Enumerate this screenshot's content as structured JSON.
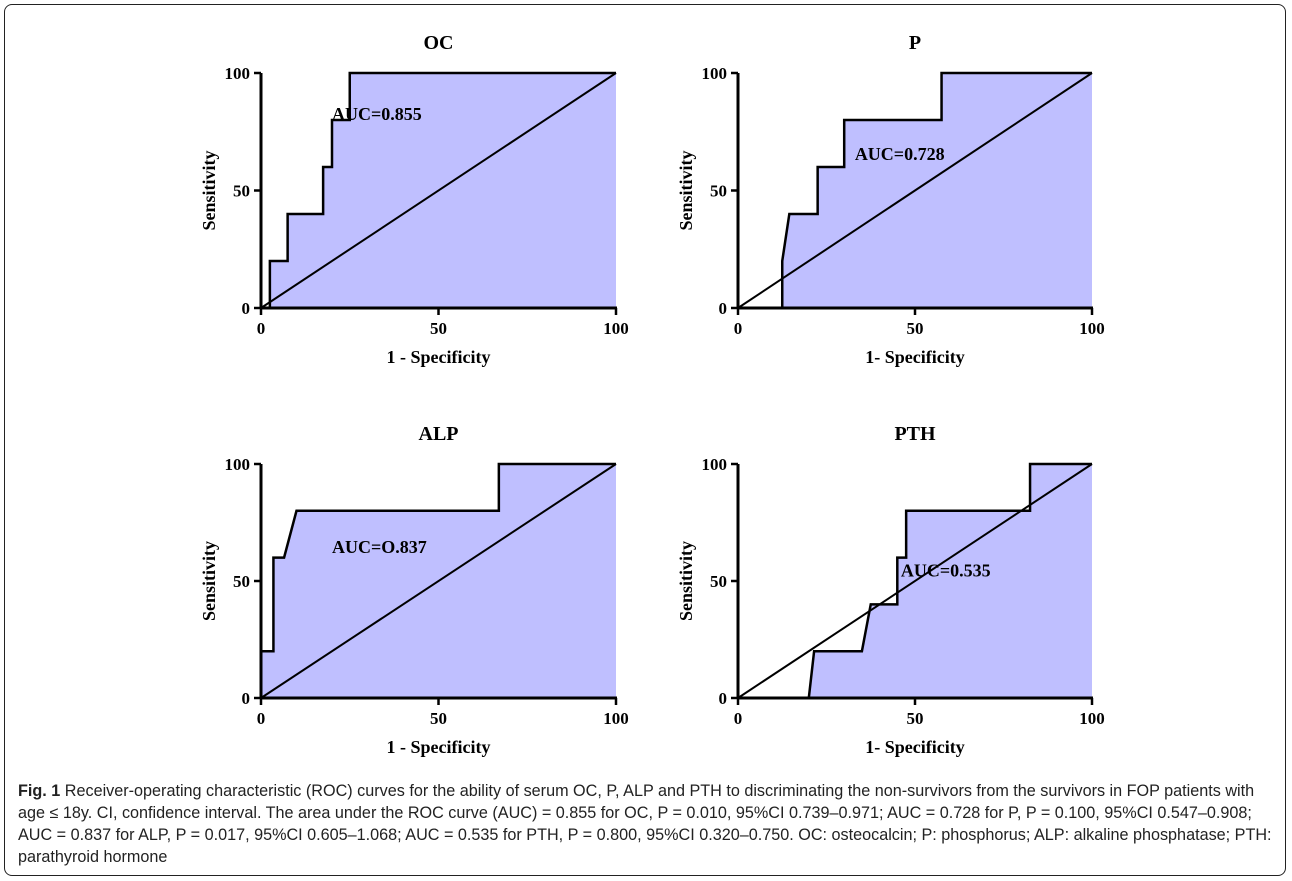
{
  "chart_data": [
    {
      "type": "line",
      "title": "OC",
      "xlabel": "1 - Specificity",
      "ylabel": "Sensitivity",
      "xlim": [
        0,
        100
      ],
      "ylim": [
        0,
        100
      ],
      "x_ticks": [
        "0",
        "50",
        "100"
      ],
      "y_ticks": [
        "0",
        "50",
        "100"
      ],
      "annotation": "AUC=0.855",
      "annotation_pos": {
        "x": 20,
        "y": 80
      },
      "fill_color": "#bfbfff",
      "line_color": "#000000",
      "series": [
        {
          "x": [
            2.5,
            2.5,
            7.5,
            7.5,
            17.5,
            17.5,
            20,
            20,
            25,
            25,
            100
          ],
          "y": [
            0,
            20,
            20,
            40,
            40,
            60,
            60,
            80,
            80,
            100,
            100
          ]
        }
      ],
      "reference_line": {
        "x": [
          0,
          100
        ],
        "y": [
          0,
          100
        ]
      }
    },
    {
      "type": "line",
      "title": "P",
      "xlabel": "1- Specificity",
      "ylabel": "Sensitivity",
      "xlim": [
        0,
        100
      ],
      "ylim": [
        0,
        100
      ],
      "x_ticks": [
        "0",
        "50",
        "100"
      ],
      "y_ticks": [
        "0",
        "50",
        "100"
      ],
      "annotation": "AUC=0.728",
      "annotation_pos": {
        "x": 33,
        "y": 63
      },
      "fill_color": "#bfbfff",
      "line_color": "#000000",
      "series": [
        {
          "x": [
            12.5,
            12.5,
            14.5,
            22.5,
            22.5,
            30,
            30,
            57.5,
            57.5,
            100
          ],
          "y": [
            0,
            20,
            40,
            40,
            60,
            60,
            80,
            80,
            100,
            100
          ]
        }
      ],
      "reference_line": {
        "x": [
          0,
          100
        ],
        "y": [
          0,
          100
        ]
      }
    },
    {
      "type": "line",
      "title": "ALP",
      "xlabel": "1 - Specificity",
      "ylabel": "Sensitivity",
      "xlim": [
        0,
        100
      ],
      "ylim": [
        0,
        100
      ],
      "x_ticks": [
        "0",
        "50",
        "100"
      ],
      "y_ticks": [
        "0",
        "50",
        "100"
      ],
      "annotation": "AUC=O.837",
      "annotation_pos": {
        "x": 20,
        "y": 62
      },
      "fill_color": "#bfbfff",
      "line_color": "#000000",
      "series": [
        {
          "x": [
            0,
            3.5,
            3.5,
            6.5,
            10,
            67,
            67,
            100
          ],
          "y": [
            20,
            20,
            60,
            60,
            80,
            80,
            100,
            100
          ]
        }
      ],
      "reference_line": {
        "x": [
          0,
          100
        ],
        "y": [
          0,
          100
        ]
      }
    },
    {
      "type": "line",
      "title": "PTH",
      "xlabel": "1- Specificity",
      "ylabel": "Sensitivity",
      "xlim": [
        0,
        100
      ],
      "ylim": [
        0,
        100
      ],
      "x_ticks": [
        "0",
        "50",
        "100"
      ],
      "y_ticks": [
        "0",
        "50",
        "100"
      ],
      "annotation": "AUC=0.535",
      "annotation_pos": {
        "x": 46,
        "y": 52
      },
      "fill_color": "#bfbfff",
      "line_color": "#000000",
      "series": [
        {
          "x": [
            20,
            21.5,
            35,
            37.5,
            45,
            45,
            47.5,
            47.5,
            82.5,
            82.5,
            100
          ],
          "y": [
            0,
            20,
            20,
            40,
            40,
            60,
            60,
            80,
            80,
            100,
            100
          ]
        }
      ],
      "reference_line": {
        "x": [
          0,
          100
        ],
        "y": [
          0,
          100
        ]
      }
    }
  ],
  "caption": {
    "label": "Fig. 1",
    "text": "Receiver-operating characteristic (ROC) curves for the ability of serum OC, P, ALP and PTH to discriminating the non-survivors from the survivors in FOP patients with age ≤ 18y. CI, confidence interval. The area under the ROC curve (AUC) = 0.855 for OC, P = 0.010, 95%CI 0.739–0.971; AUC = 0.728 for P, P = 0.100, 95%CI 0.547–0.908; AUC = 0.837 for ALP, P = 0.017, 95%CI 0.605–1.068; AUC = 0.535 for PTH, P = 0.800, 95%CI 0.320–0.750. OC: osteocalcin; P: phosphorus; ALP: alkaline phosphatase; PTH: parathyroid hormone"
  }
}
